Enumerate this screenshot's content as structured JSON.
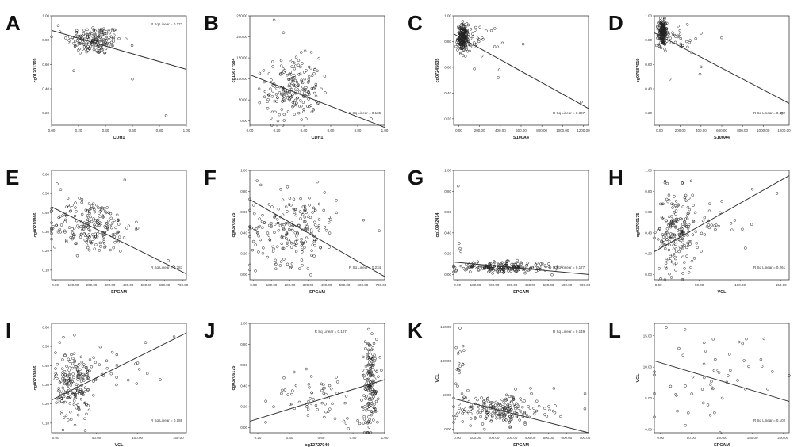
{
  "figure": {
    "rsq_label": "R Sq Linear"
  },
  "chart_data": [
    {
      "id": "A",
      "letter": "A",
      "type": "scatter",
      "xlabel": "CDH1",
      "ylabel": "cg01201369",
      "xticks": [
        "0.00",
        "0.20",
        "0.40",
        "0.60",
        "0.80",
        "1.00"
      ],
      "xlim": [
        0,
        1
      ],
      "yticks": [
        "0.20",
        "0.40",
        "0.60",
        "0.80",
        "1.00"
      ],
      "ylim": [
        0.1,
        1.0
      ],
      "rsq": "0.172",
      "rsq_pos": "top-right",
      "fit": {
        "x0": 0,
        "y0": 0.88,
        "x1": 1,
        "y1": 0.56
      },
      "cloud": [
        {
          "cx": 0.32,
          "cy": 0.8,
          "sx": 0.1,
          "sy": 0.06,
          "n": 180
        }
      ],
      "extra": [
        [
          0.85,
          0.18
        ],
        [
          0.6,
          0.48
        ],
        [
          0.05,
          0.92
        ]
      ]
    },
    {
      "id": "B",
      "letter": "B",
      "type": "scatter",
      "xlabel": "CDH1",
      "ylabel": "cg16677584",
      "xticks": [
        "0.00",
        "0.20",
        "0.40",
        "0.60",
        "0.80",
        "1.00"
      ],
      "xlim": [
        0,
        1
      ],
      "yticks": [
        "0.00",
        "50.00",
        "100.00",
        "150.00",
        "200.00",
        "250.00"
      ],
      "ylim": [
        -10,
        250
      ],
      "rsq": "0.135",
      "rsq_pos": "bottom-right",
      "fit": {
        "x0": 0,
        "y0": 110,
        "x1": 1,
        "y1": -15
      },
      "cloud": [
        {
          "cx": 0.32,
          "cy": 75,
          "sx": 0.1,
          "sy": 38,
          "n": 200
        }
      ],
      "extra": [
        [
          0.18,
          240
        ],
        [
          0.9,
          5
        ],
        [
          0.25,
          210
        ]
      ]
    },
    {
      "id": "C",
      "letter": "C",
      "type": "scatter",
      "xlabel": "S100A4",
      "ylabel": "cg07245635",
      "xticks": [
        "0.00",
        "200.00",
        "400.00",
        "600.00",
        "800.00",
        "1000.00",
        "1200.00"
      ],
      "xlim": [
        -50,
        1250
      ],
      "yticks": [
        "0.20",
        "0.40",
        "0.60",
        "0.80",
        "1.00"
      ],
      "ylim": [
        0.15,
        1.0
      ],
      "rsq": "0.327",
      "rsq_pos": "bottom-right",
      "fit": {
        "x0": -50,
        "y0": 0.86,
        "x1": 1250,
        "y1": 0.28
      },
      "cloud": [
        {
          "cx": 40,
          "cy": 0.83,
          "sx": 25,
          "sy": 0.05,
          "n": 220
        },
        {
          "cx": 200,
          "cy": 0.82,
          "sx": 100,
          "sy": 0.06,
          "n": 30
        }
      ],
      "extra": [
        [
          380,
          0.52
        ],
        [
          390,
          0.58
        ],
        [
          620,
          0.78
        ],
        [
          1180,
          0.33
        ]
      ]
    },
    {
      "id": "D",
      "letter": "D",
      "type": "scatter",
      "xlabel": "S100A4",
      "ylabel": "cg07587619",
      "xticks": [
        "0.00",
        "200.00",
        "400.00",
        "600.00",
        "800.00",
        "1000.00",
        "1200.00"
      ],
      "xlim": [
        -50,
        1250
      ],
      "yticks": [
        "0.20",
        "0.40",
        "0.60",
        "0.80",
        "1.00"
      ],
      "ylim": [
        0.1,
        1.0
      ],
      "rsq": "0.292",
      "rsq_pos": "bottom-right",
      "fit": {
        "x0": -50,
        "y0": 0.86,
        "x1": 1250,
        "y1": 0.28
      },
      "cloud": [
        {
          "cx": 30,
          "cy": 0.86,
          "sx": 20,
          "sy": 0.05,
          "n": 220
        },
        {
          "cx": 180,
          "cy": 0.82,
          "sx": 100,
          "sy": 0.06,
          "n": 30
        }
      ],
      "extra": [
        [
          400,
          0.58
        ],
        [
          390,
          0.52
        ],
        [
          100,
          0.48
        ],
        [
          1180,
          0.2
        ],
        [
          600,
          0.82
        ]
      ]
    },
    {
      "id": "E",
      "letter": "E",
      "type": "scatter",
      "xlabel": "EPCAM",
      "ylabel": "cg00210866",
      "xticks": [
        "0.00",
        "100.00",
        "200.00",
        "300.00",
        "400.00",
        "500.00",
        "600.00",
        "700.00"
      ],
      "xlim": [
        -20,
        720
      ],
      "yticks": [
        "0.10",
        "0.20",
        "0.30",
        "0.40",
        "0.50",
        "0.60"
      ],
      "ylim": [
        0.05,
        0.62
      ],
      "rsq": "0.283",
      "rsq_pos": "bottom-right",
      "fit": {
        "x0": -20,
        "y0": 0.43,
        "x1": 720,
        "y1": 0.08
      },
      "cloud": [
        {
          "cx": 200,
          "cy": 0.33,
          "sx": 110,
          "sy": 0.07,
          "n": 220
        }
      ],
      "extra": [
        [
          10,
          0.55
        ],
        [
          30,
          0.52
        ],
        [
          620,
          0.15
        ],
        [
          650,
          0.12
        ]
      ]
    },
    {
      "id": "F",
      "letter": "F",
      "type": "scatter",
      "xlabel": "EPCAM",
      "ylabel": "cg03706175",
      "xticks": [
        "0.00",
        "100.00",
        "200.00",
        "300.00",
        "400.00",
        "500.00",
        "600.00",
        "700.00"
      ],
      "xlim": [
        -20,
        720
      ],
      "yticks": [
        "0.00",
        "0.20",
        "0.40",
        "0.60",
        "0.80",
        "1.00"
      ],
      "ylim": [
        -0.05,
        1.0
      ],
      "rsq": "0.234",
      "rsq_pos": "bottom-right",
      "fit": {
        "x0": -20,
        "y0": 0.72,
        "x1": 720,
        "y1": -0.02
      },
      "cloud": [
        {
          "cx": 220,
          "cy": 0.45,
          "sx": 120,
          "sy": 0.17,
          "n": 210
        }
      ],
      "extra": [
        [
          20,
          0.9
        ],
        [
          40,
          0.86
        ],
        [
          690,
          0.42
        ]
      ]
    },
    {
      "id": "G",
      "letter": "G",
      "type": "scatter",
      "xlabel": "EPCAM",
      "ylabel": "cg10942414",
      "xticks": [
        "0.00",
        "100.00",
        "200.00",
        "300.00",
        "400.00",
        "500.00",
        "600.00",
        "700.00"
      ],
      "xlim": [
        -20,
        720
      ],
      "yticks": [
        "0.00",
        "0.20",
        "0.40",
        "0.60",
        "0.80",
        "1.00"
      ],
      "ylim": [
        -0.05,
        1.0
      ],
      "rsq": "0.177",
      "rsq_pos": "bottom-right",
      "fit": {
        "x0": -20,
        "y0": 0.12,
        "x1": 720,
        "y1": 0.0
      },
      "cloud": [
        {
          "cx": 250,
          "cy": 0.07,
          "sx": 130,
          "sy": 0.025,
          "n": 220
        }
      ],
      "extra": [
        [
          5,
          0.85
        ],
        [
          10,
          0.3
        ],
        [
          15,
          0.25
        ],
        [
          20,
          0.22
        ]
      ]
    },
    {
      "id": "H",
      "letter": "H",
      "type": "scatter",
      "xlabel": "VCL",
      "ylabel": "cg03706175",
      "xticks": [
        "0.00",
        "50.00",
        "100.00",
        "150.00"
      ],
      "xlim": [
        -5,
        160
      ],
      "yticks": [
        "0.00",
        "0.20",
        "0.40",
        "0.60",
        "0.80",
        "1.00"
      ],
      "ylim": [
        -0.05,
        1.0
      ],
      "rsq": "0.261",
      "rsq_pos": "bottom-right",
      "fit": {
        "x0": -5,
        "y0": 0.22,
        "x1": 160,
        "y1": 0.95
      },
      "cloud": [
        {
          "cx": 22,
          "cy": 0.4,
          "sx": 12,
          "sy": 0.2,
          "n": 200
        },
        {
          "cx": 70,
          "cy": 0.55,
          "sx": 25,
          "sy": 0.12,
          "n": 25
        }
      ],
      "extra": [
        [
          8,
          0.88
        ],
        [
          145,
          0.78
        ],
        [
          115,
          0.82
        ]
      ]
    },
    {
      "id": "I",
      "letter": "I",
      "type": "scatter",
      "xlabel": "VCL",
      "ylabel": "cg00210866",
      "xticks": [
        "0.00",
        "50.00",
        "100.00",
        "150.00"
      ],
      "xlim": [
        -5,
        160
      ],
      "yticks": [
        "0.10",
        "0.20",
        "0.30",
        "0.40",
        "0.50",
        "0.60"
      ],
      "ylim": [
        0.05,
        0.62
      ],
      "rsq": "0.188",
      "rsq_pos": "bottom-right",
      "fit": {
        "x0": -5,
        "y0": 0.22,
        "x1": 160,
        "y1": 0.57
      },
      "cloud": [
        {
          "cx": 22,
          "cy": 0.3,
          "sx": 11,
          "sy": 0.09,
          "n": 200
        },
        {
          "cx": 70,
          "cy": 0.38,
          "sx": 25,
          "sy": 0.07,
          "n": 25
        }
      ],
      "extra": [
        [
          145,
          0.55
        ],
        [
          110,
          0.52
        ],
        [
          5,
          0.52
        ]
      ]
    },
    {
      "id": "J",
      "letter": "J",
      "type": "scatter",
      "xlabel": "cg12727040",
      "ylabel": "cg03706175",
      "xticks": [
        "0.20",
        "0.40",
        "0.60",
        "0.80",
        "1.00"
      ],
      "xlim": [
        0.15,
        1.0
      ],
      "yticks": [
        "0.00",
        "0.20",
        "0.40",
        "0.60",
        "0.80",
        "1.00"
      ],
      "ylim": [
        -0.05,
        1.0
      ],
      "rsq": "0.107",
      "rsq_pos": "top-left",
      "fit": {
        "x0": 0.15,
        "y0": 0.06,
        "x1": 1.0,
        "y1": 0.46
      },
      "cloud": [
        {
          "cx": 0.91,
          "cy": 0.42,
          "sx": 0.025,
          "sy": 0.22,
          "n": 170
        },
        {
          "cx": 0.6,
          "cy": 0.3,
          "sx": 0.15,
          "sy": 0.12,
          "n": 60
        }
      ],
      "extra": [
        [
          0.25,
          0.05
        ],
        [
          0.3,
          0.2
        ],
        [
          0.92,
          0.9
        ]
      ]
    },
    {
      "id": "K",
      "letter": "K",
      "type": "scatter",
      "xlabel": "EPCAM",
      "ylabel": "VCL",
      "xticks": [
        "0.00",
        "100.00",
        "200.00",
        "300.00",
        "400.00",
        "500.00",
        "600.00",
        "700.00"
      ],
      "xlim": [
        -20,
        720
      ],
      "yticks": [
        "0.00",
        "50.00",
        "100.00",
        "150.00"
      ],
      "ylim": [
        -5,
        155
      ],
      "rsq": "0.149",
      "rsq_pos": "top-right",
      "fit": {
        "x0": -20,
        "y0": 45,
        "x1": 720,
        "y1": -5
      },
      "cloud": [
        {
          "cx": 230,
          "cy": 28,
          "sx": 130,
          "sy": 11,
          "n": 210
        },
        {
          "cx": 20,
          "cy": 90,
          "sx": 15,
          "sy": 25,
          "n": 20
        }
      ],
      "extra": [
        [
          15,
          148
        ],
        [
          530,
          60
        ],
        [
          700,
          30
        ]
      ]
    },
    {
      "id": "L",
      "letter": "L",
      "type": "scatter",
      "xlabel": "EPCAM",
      "ylabel": "VCL",
      "xticks": [
        "0.00",
        "50.00",
        "100.00",
        "150.00",
        "200.00"
      ],
      "xlim": [
        -10,
        210
      ],
      "yticks": [
        "0.00",
        "5.00",
        "10.00",
        "15.00"
      ],
      "ylim": [
        -0.5,
        17
      ],
      "rsq": "0.102",
      "rsq_pos": "bottom-right",
      "fit": {
        "x0": -10,
        "y0": 11,
        "x1": 210,
        "y1": 4.5
      },
      "cloud": [
        {
          "cx": 80,
          "cy": 8,
          "sx": 45,
          "sy": 3.5,
          "n": 50
        }
      ],
      "extra": [
        [
          40,
          16
        ],
        [
          140,
          14.5
        ],
        [
          175,
          6.5
        ],
        [
          30,
          13
        ]
      ]
    }
  ]
}
